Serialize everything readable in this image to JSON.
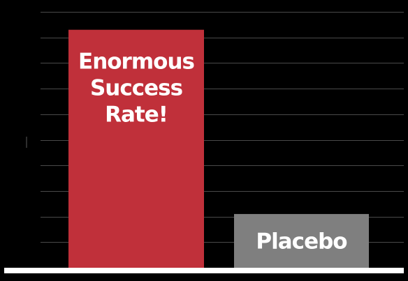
{
  "chart_data": {
    "type": "bar",
    "categories": [
      "Enormous Success Rate!",
      "Placebo"
    ],
    "values": [
      93,
      21
    ],
    "ylim": [
      0,
      100
    ],
    "grid": true,
    "legend": "none",
    "colors": [
      "#c0303a",
      "#7f7f7f"
    ],
    "background": "#000000",
    "gridline_color": "#4a4a4a",
    "baseline_color": "#ffffff",
    "label_lines": [
      [
        "Enormous",
        "Success",
        "Rate!"
      ],
      [
        "Placebo"
      ]
    ]
  }
}
